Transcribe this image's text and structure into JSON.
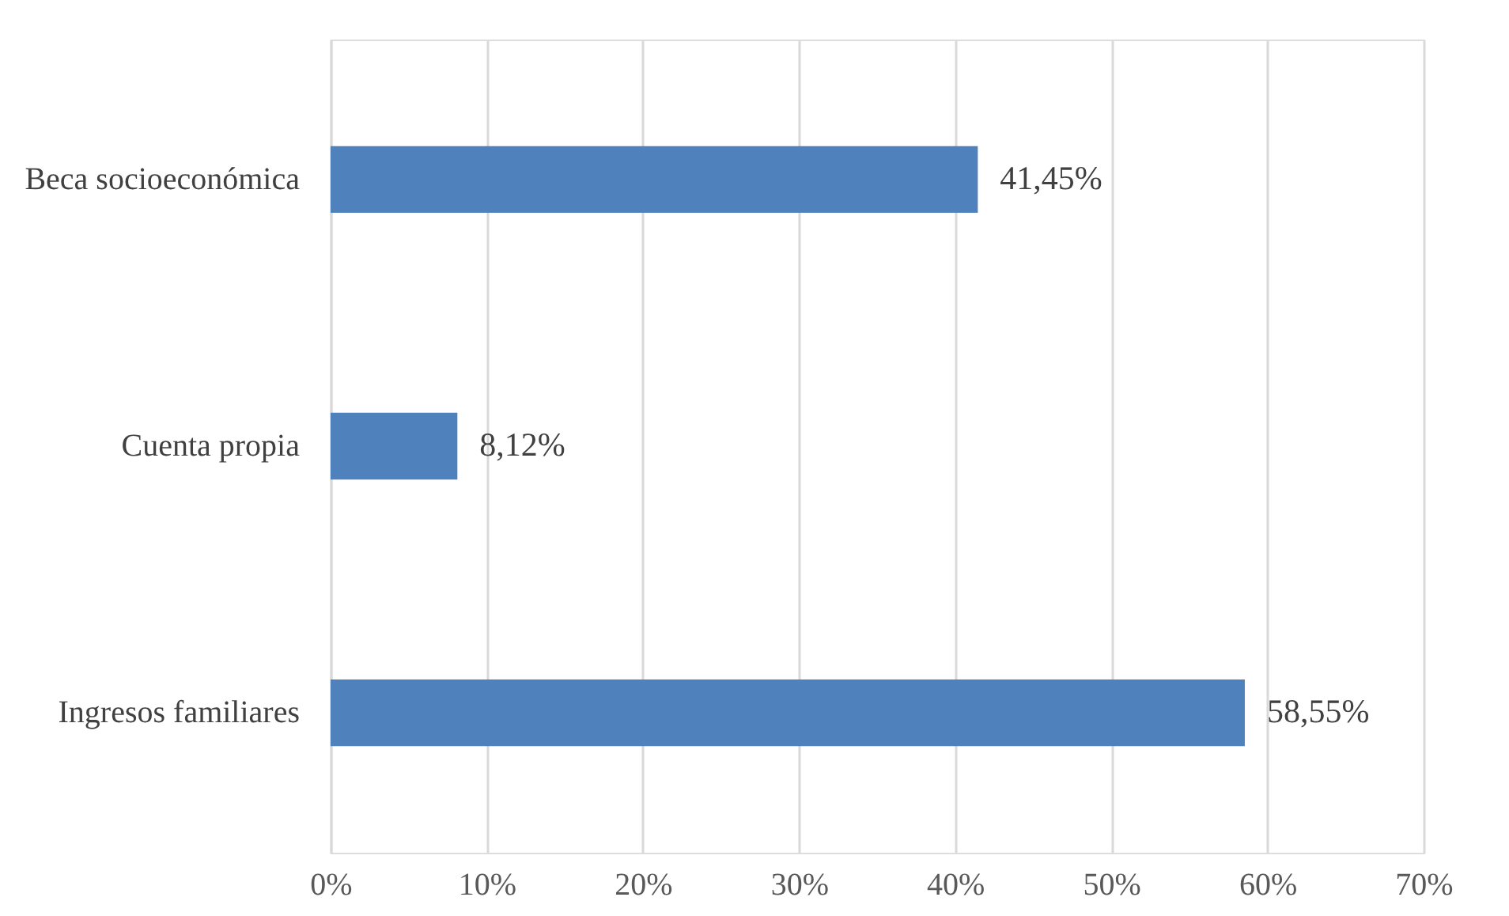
{
  "chart_data": {
    "type": "bar",
    "orientation": "horizontal",
    "categories": [
      "Beca socioeconómica",
      "Cuenta propia",
      "Ingresos familiares"
    ],
    "values": [
      41.45,
      8.12,
      58.55
    ],
    "value_labels": [
      "41,45%",
      "8,12%",
      "58,55%"
    ],
    "color": "#4f81bd",
    "xlim": [
      0,
      70
    ],
    "xticks": [
      {
        "value": 0,
        "label": "0%"
      },
      {
        "value": 10,
        "label": "10%"
      },
      {
        "value": 20,
        "label": "20%"
      },
      {
        "value": 30,
        "label": "30%"
      },
      {
        "value": 40,
        "label": "40%"
      },
      {
        "value": 50,
        "label": "50%"
      },
      {
        "value": 60,
        "label": "60%"
      },
      {
        "value": 70,
        "label": "70%"
      }
    ],
    "grid": "x"
  }
}
